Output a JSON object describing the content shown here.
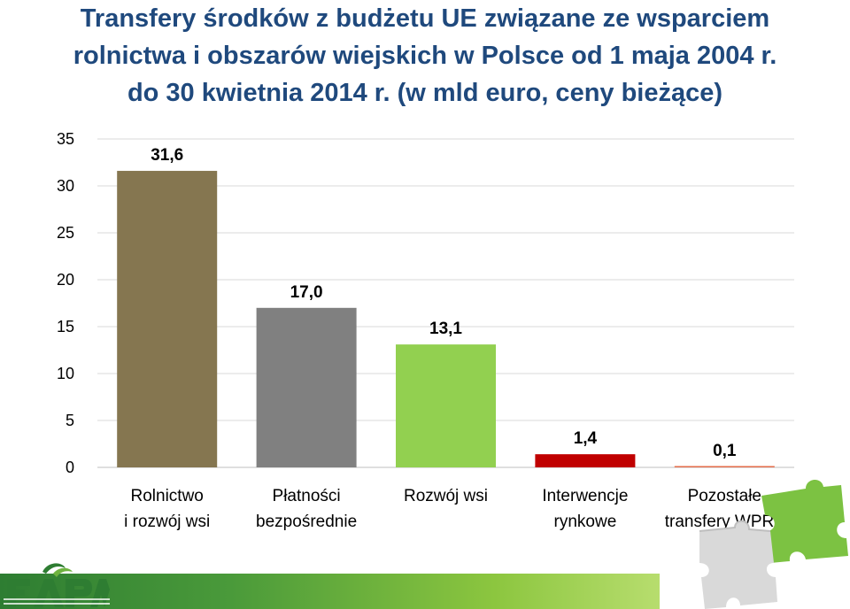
{
  "title_lines": [
    "Transfery środków z budżetu UE związane ze wsparciem",
    "rolnictwa i obszarów wiejskich w Polsce od 1 maja 2004 r.",
    "do 30 kwietnia 2014 r. (w mld euro, ceny bieżące)"
  ],
  "chart_data": {
    "type": "bar",
    "title": "Transfery środków z budżetu UE związane ze wsparciem rolnictwa i obszarów wiejskich w Polsce od 1 maja 2004 r. do 30 kwietnia 2014 r. (w mld euro, ceny bieżące)",
    "categories": [
      [
        "Rolnictwo",
        "i rozwój wsi"
      ],
      [
        "Płatności",
        "bezpośrednie"
      ],
      [
        "Rozwój wsi"
      ],
      [
        "Interwencje",
        "rynkowe"
      ],
      [
        "Pozostałe",
        "transfery WPR ¹"
      ]
    ],
    "values": [
      31.6,
      17.0,
      13.1,
      1.4,
      0.1
    ],
    "value_labels": [
      "31,6",
      "17,0",
      "13,1",
      "1,4",
      "0,1"
    ],
    "colors": [
      "#857650",
      "#808080",
      "#92d050",
      "#c00000",
      "#e46c4a"
    ],
    "ylim": [
      0,
      35
    ],
    "yticks": [
      0,
      5,
      10,
      15,
      20,
      25,
      30,
      35
    ],
    "grid": true,
    "xlabel": "",
    "ylabel": ""
  },
  "branding": {
    "logo_text": "FAPA",
    "stripe_colors": [
      "#2e7d32",
      "#8cc63f"
    ]
  }
}
